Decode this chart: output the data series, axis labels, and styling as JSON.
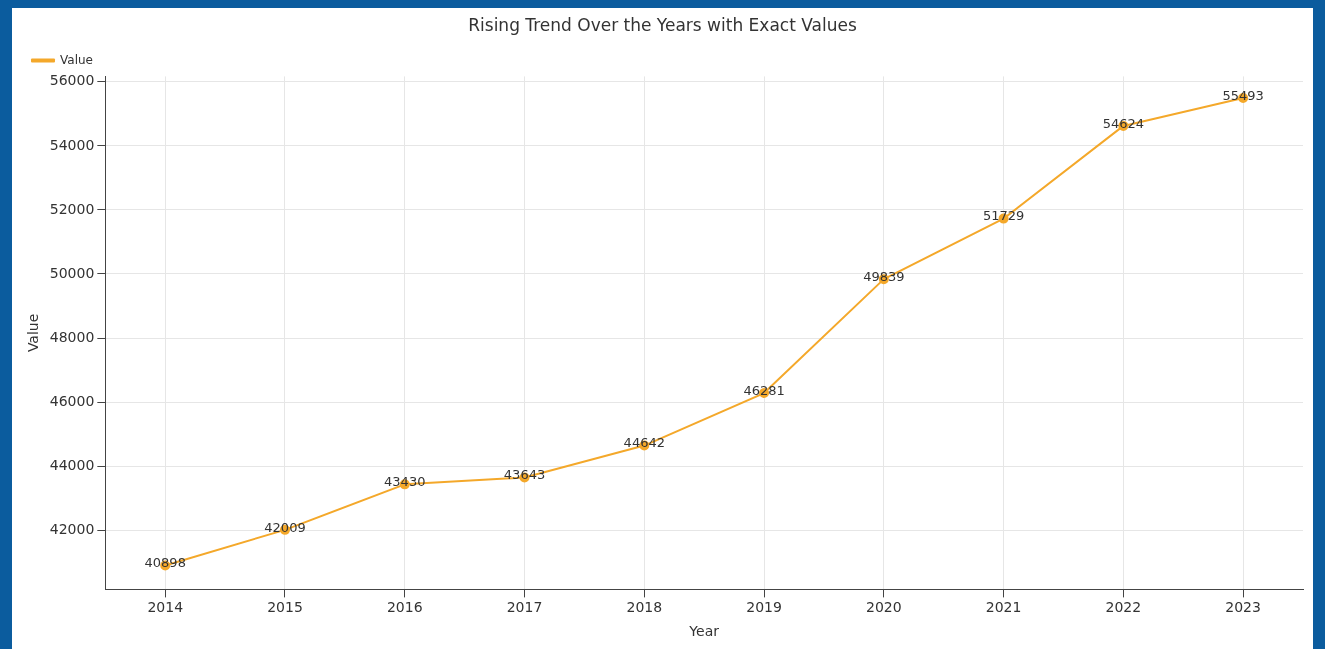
{
  "chart_data": {
    "type": "line",
    "title": "Rising Trend Over the Years with Exact Values",
    "xlabel": "Year",
    "ylabel": "Value",
    "categories": [
      "2014",
      "2015",
      "2016",
      "2017",
      "2018",
      "2019",
      "2020",
      "2021",
      "2022",
      "2023"
    ],
    "series": [
      {
        "name": "Value",
        "color": "#f4a82a",
        "values": [
          40898,
          42009,
          43430,
          43643,
          44642,
          46281,
          49839,
          51729,
          54624,
          55493
        ]
      }
    ],
    "ylim": [
      40150,
      56170
    ],
    "yticks": [
      42000,
      44000,
      46000,
      48000,
      50000,
      52000,
      54000,
      56000
    ],
    "grid": true,
    "legend": "top left",
    "marker": "circle",
    "line_style": "solid",
    "data_labels": true
  }
}
